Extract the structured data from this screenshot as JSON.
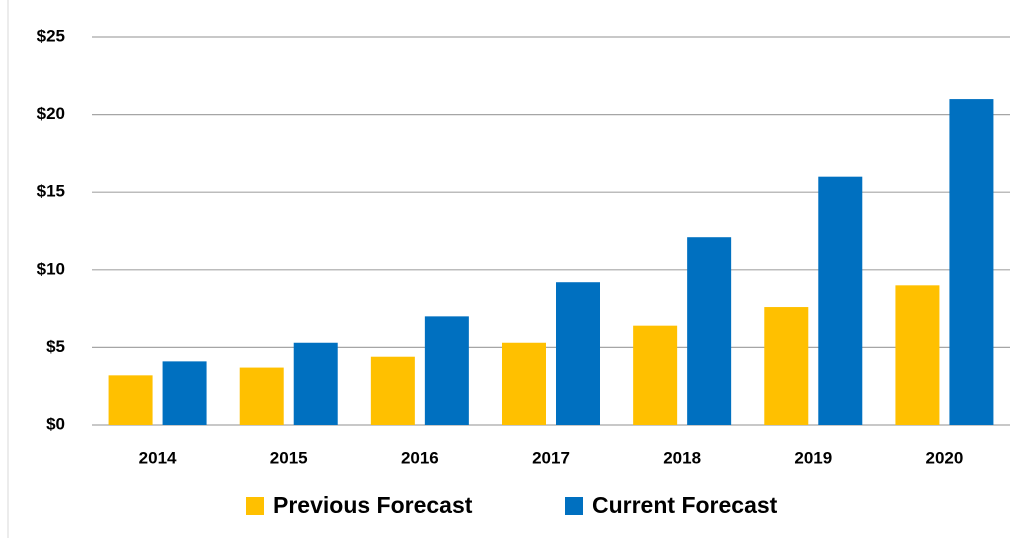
{
  "chart_data": {
    "type": "bar",
    "categories": [
      "2014",
      "2015",
      "2016",
      "2017",
      "2018",
      "2019",
      "2020"
    ],
    "series": [
      {
        "name": "Previous Forecast",
        "color": "#FFC000",
        "values": [
          3.2,
          3.7,
          4.4,
          5.3,
          6.4,
          7.6,
          9.0
        ]
      },
      {
        "name": "Current Forecast",
        "color": "#0070C0",
        "values": [
          4.1,
          5.3,
          7.0,
          9.2,
          12.1,
          16.0,
          21.0
        ]
      }
    ],
    "ylim": [
      0,
      25
    ],
    "yticks": [
      {
        "value": 0,
        "label": "$0"
      },
      {
        "value": 5,
        "label": "$5"
      },
      {
        "value": 10,
        "label": "$10"
      },
      {
        "value": 15,
        "label": "$15"
      },
      {
        "value": 20,
        "label": "$20"
      },
      {
        "value": 25,
        "label": "$25"
      }
    ],
    "grid": true,
    "legend": "bottom"
  }
}
